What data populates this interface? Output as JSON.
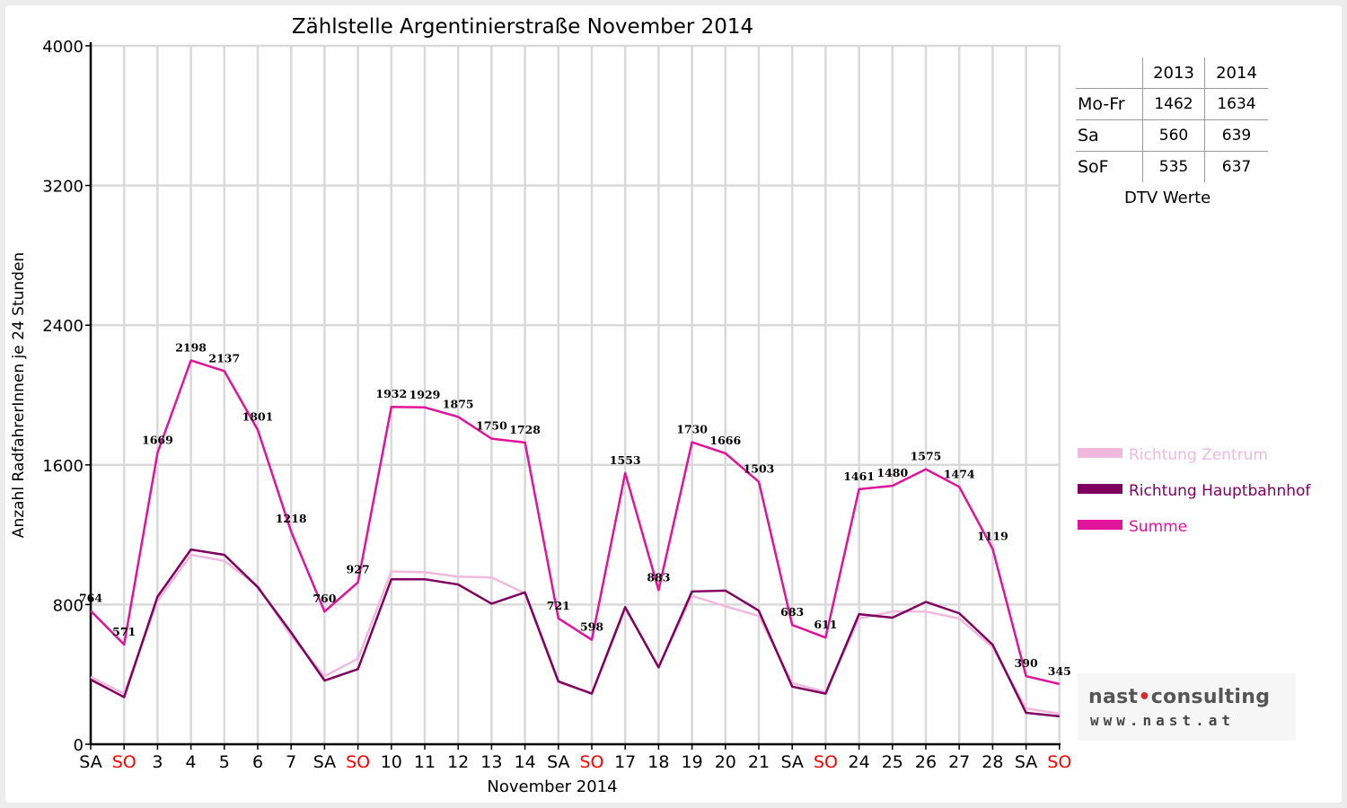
{
  "chart_data": {
    "type": "line",
    "title": "Zählstelle Argentinierstraße November 2014",
    "xlabel": "November 2014",
    "ylabel": "Anzahl RadfahrerInnen je 24 Stunden",
    "ylim": [
      0,
      4000
    ],
    "yticks": [
      0,
      800,
      1600,
      2400,
      3200,
      4000
    ],
    "grid": true,
    "legend_position": "right",
    "categories": [
      "SA",
      "SO",
      "3",
      "4",
      "5",
      "6",
      "7",
      "SA",
      "SO",
      "10",
      "11",
      "12",
      "13",
      "14",
      "SA",
      "SO",
      "17",
      "18",
      "19",
      "20",
      "21",
      "SA",
      "SO",
      "24",
      "25",
      "26",
      "27",
      "28",
      "SA",
      "SO"
    ],
    "weekend_tick_color": "#ff0000",
    "series": [
      {
        "name": "Richtung Zentrum",
        "color": "#f0b8dc",
        "values": [
          385,
          290,
          820,
          1085,
          1050,
          905,
          620,
          390,
          490,
          990,
          985,
          960,
          955,
          865,
          355,
          290,
          775,
          445,
          850,
          790,
          735,
          350,
          300,
          720,
          760,
          760,
          720,
          555,
          205,
          175
        ]
      },
      {
        "name": "Richtung Hauptbahnhof",
        "color": "#800060",
        "values": [
          370,
          270,
          845,
          1115,
          1085,
          900,
          640,
          365,
          430,
          945,
          945,
          915,
          805,
          870,
          360,
          290,
          785,
          440,
          875,
          880,
          765,
          330,
          290,
          745,
          725,
          815,
          750,
          570,
          180,
          160
        ]
      },
      {
        "name": "Summe",
        "color": "#e0139a",
        "values": [
          764,
          571,
          1669,
          2198,
          2137,
          1801,
          1218,
          760,
          927,
          1932,
          1929,
          1875,
          1750,
          1728,
          721,
          598,
          1553,
          883,
          1730,
          1666,
          1503,
          683,
          611,
          1461,
          1480,
          1575,
          1474,
          1119,
          390,
          345
        ]
      }
    ],
    "data_labels": [
      "764",
      "571",
      "1669",
      "2198",
      "2137",
      "1801",
      "1218",
      "760",
      "927",
      "1932",
      "1929",
      "1875",
      "1750",
      "1728",
      "721",
      "598",
      "1553",
      "883",
      "1730",
      "1666",
      "1503",
      "683",
      "611",
      "1461",
      "1480",
      "1575",
      "1474",
      "1119",
      "390",
      "345"
    ]
  },
  "dtv_table": {
    "caption": "DTV Werte",
    "columns": [
      "2013",
      "2014"
    ],
    "rows": [
      {
        "label": "Mo-Fr",
        "v2013": "1462",
        "v2014": "1634"
      },
      {
        "label": "Sa",
        "v2013": "560",
        "v2014": "639"
      },
      {
        "label": "SoF",
        "v2013": "535",
        "v2014": "637"
      }
    ]
  },
  "logo": {
    "name_part1": "nast",
    "name_part2": "consulting",
    "url": "www.nast.at",
    "accent_color": "#d8292f"
  }
}
